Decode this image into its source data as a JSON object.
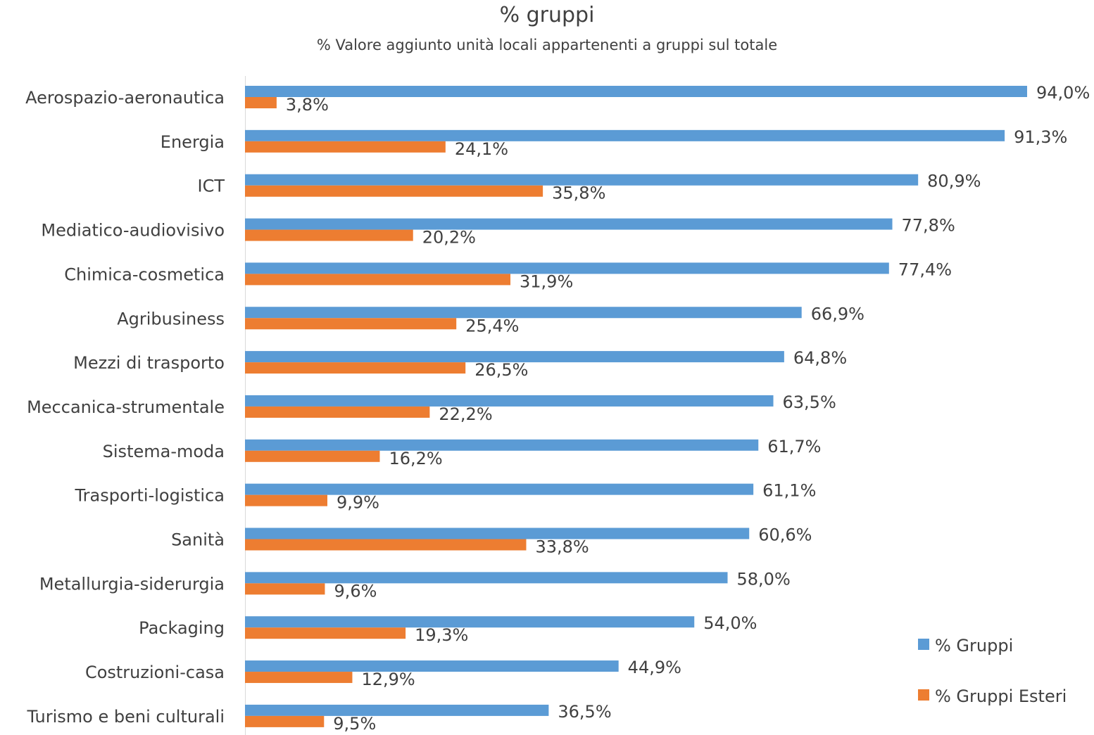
{
  "chart_data": {
    "type": "bar",
    "orientation": "horizontal",
    "title": "% gruppi",
    "subtitle": "% Valore aggiunto unità locali appartenenti a gruppi sul totale",
    "categories": [
      "Aerospazio-aeronautica",
      "Energia",
      "ICT",
      "Mediatico-audiovisivo",
      "Chimica-cosmetica",
      "Agribusiness",
      "Mezzi di trasporto",
      "Meccanica-strumentale",
      "Sistema-moda",
      "Trasporti-logistica",
      "Sanità",
      "Metallurgia-siderurgia",
      "Packaging",
      "Costruzioni-casa",
      "Turismo e beni culturali"
    ],
    "series": [
      {
        "name": "% Gruppi",
        "color": "#5B9BD5",
        "values": [
          94.0,
          91.3,
          80.9,
          77.8,
          77.4,
          66.9,
          64.8,
          63.5,
          61.7,
          61.1,
          60.6,
          58.0,
          54.0,
          44.9,
          36.5
        ],
        "labels": [
          "94,0%",
          "91,3%",
          "80,9%",
          "77,8%",
          "77,4%",
          "66,9%",
          "64,8%",
          "63,5%",
          "61,7%",
          "61,1%",
          "60,6%",
          "58,0%",
          "54,0%",
          "44,9%",
          "36,5%"
        ]
      },
      {
        "name": "% Gruppi Esteri",
        "color": "#ED7D31",
        "values": [
          3.8,
          24.1,
          35.8,
          20.2,
          31.9,
          25.4,
          26.5,
          22.2,
          16.2,
          9.9,
          33.8,
          9.6,
          19.3,
          12.9,
          9.5
        ],
        "labels": [
          "3,8%",
          "24,1%",
          "35,8%",
          "20,2%",
          "31,9%",
          "25,4%",
          "26,5%",
          "22,2%",
          "16,2%",
          "9,9%",
          "33,8%",
          "9,6%",
          "19,3%",
          "12,9%",
          "9,5%"
        ]
      }
    ],
    "xlim": [
      0,
      94
    ],
    "grid": false,
    "legend_position": "bottom-right"
  }
}
